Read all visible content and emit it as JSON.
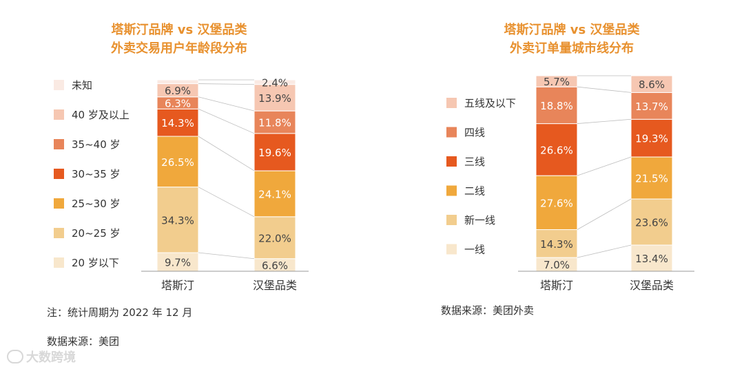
{
  "chart_data": [
    {
      "type": "bar",
      "stacked": true,
      "title": "塔斯汀品牌 vs 汉堡品类\n外卖交易用户年龄段分布",
      "title_lines": [
        "塔斯汀品牌 vs 汉堡品类",
        "外卖交易用户年龄段分布"
      ],
      "categories": [
        "塔斯汀",
        "汉堡品类"
      ],
      "series": [
        {
          "name": "20 岁以下",
          "values": [
            9.7,
            6.6
          ],
          "color": "#f8e7cc"
        },
        {
          "name": "20~25 岁",
          "values": [
            34.3,
            22.0
          ],
          "color": "#f2cd8e"
        },
        {
          "name": "25~30 岁",
          "values": [
            26.5,
            24.1
          ],
          "color": "#f0a83c"
        },
        {
          "name": "30~35 岁",
          "values": [
            14.3,
            19.6
          ],
          "color": "#e6591f"
        },
        {
          "name": "35~40 岁",
          "values": [
            6.3,
            11.8
          ],
          "color": "#e8855a"
        },
        {
          "name": "40 岁及以上",
          "values": [
            6.9,
            13.9
          ],
          "color": "#f6c7b2"
        },
        {
          "name": "未知",
          "values": [
            2.0,
            2.4
          ],
          "color": "#faeae3"
        }
      ],
      "labels": [
        [
          "9.7%",
          "6.6%"
        ],
        [
          "34.3%",
          "22.0%"
        ],
        [
          "26.5%",
          "24.1%"
        ],
        [
          "14.3%",
          "19.6%"
        ],
        [
          "6.3%",
          "11.8%"
        ],
        [
          "6.9%",
          "13.9%"
        ],
        [
          "",
          "2.4%"
        ]
      ],
      "ylim": [
        0,
        100
      ],
      "legend_position": "left",
      "note": "注：统计周期为 2022 年 12 月",
      "source": "数据来源：美团"
    },
    {
      "type": "bar",
      "stacked": true,
      "title": "塔斯汀品牌 vs 汉堡品类\n外卖订单量城市线分布",
      "title_lines": [
        "塔斯汀品牌 vs 汉堡品类",
        "外卖订单量城市线分布"
      ],
      "categories": [
        "塔斯汀",
        "汉堡品类"
      ],
      "series": [
        {
          "name": "一线",
          "values": [
            7.0,
            13.4
          ],
          "color": "#f8e7cc"
        },
        {
          "name": "新一线",
          "values": [
            14.3,
            23.6
          ],
          "color": "#f2cd8e"
        },
        {
          "name": "二线",
          "values": [
            27.6,
            21.5
          ],
          "color": "#f0a83c"
        },
        {
          "name": "三线",
          "values": [
            26.6,
            19.3
          ],
          "color": "#e6591f"
        },
        {
          "name": "四线",
          "values": [
            18.8,
            13.7
          ],
          "color": "#e8855a"
        },
        {
          "name": "五线及以下",
          "values": [
            5.7,
            8.6
          ],
          "color": "#f6c7b2"
        }
      ],
      "labels": [
        [
          "7.0%",
          "13.4%"
        ],
        [
          "14.3%",
          "23.6%"
        ],
        [
          "27.6%",
          "21.5%"
        ],
        [
          "26.6%",
          "19.3%"
        ],
        [
          "18.8%",
          "13.7%"
        ],
        [
          "5.7%",
          "8.6%"
        ]
      ],
      "ylim": [
        0,
        100
      ],
      "legend_position": "left",
      "source": "数据来源：美团外卖"
    }
  ],
  "watermark": "大数跨境"
}
